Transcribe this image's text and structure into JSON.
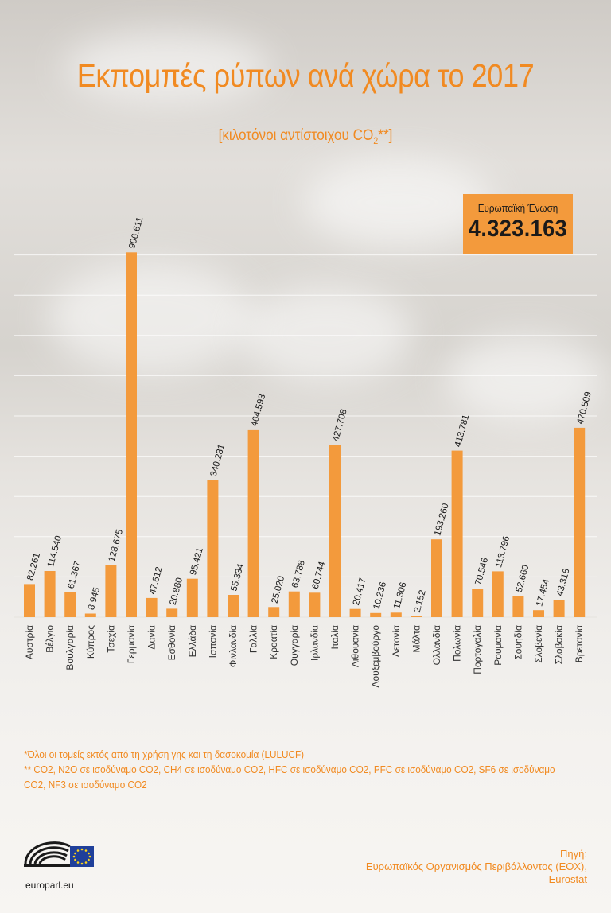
{
  "header": {
    "title": "Εκπομπές ρύπων ανά χώρα το 2017",
    "subtitle_main": "[κιλοτόνοι αντίστοιχου CO",
    "subtitle_sub": "2",
    "subtitle_end": "**]"
  },
  "eu_total": {
    "label": "Ευρωπαϊκή Ένωση",
    "value": "4.323.163"
  },
  "chart_data": {
    "type": "bar",
    "categories": [
      "Αυστρία",
      "Βέλγιο",
      "Βουλγαρία",
      "Κύπρος",
      "Τσεχία",
      "Γερμανία",
      "Δανία",
      "Εσθονία",
      "Ελλάδα",
      "Ισπανία",
      "Φινλανδία",
      "Γαλλία",
      "Κροατία",
      "Ουγγαρία",
      "Ιρλανδία",
      "Ιταλία",
      "Λιθουανία",
      "Λουξεμβούργο",
      "Λετονία",
      "Μάλτα",
      "Ολλανδία",
      "Πολωνία",
      "Πορτογαλία",
      "Ρουμανία",
      "Σουηδία",
      "Σλοβενία",
      "Σλοβακία",
      "Βρετανία"
    ],
    "values": [
      82261,
      114540,
      61367,
      8945,
      128675,
      906611,
      47612,
      20880,
      95421,
      340231,
      55334,
      464593,
      25020,
      63788,
      60744,
      427708,
      20417,
      10236,
      11306,
      2152,
      193260,
      413781,
      70546,
      113796,
      52660,
      17454,
      43316,
      470509
    ],
    "labels": [
      "82.261",
      "114.540",
      "61.367",
      "8.945",
      "128.675",
      "906.611",
      "47.612",
      "20.880",
      "95.421",
      "340.231",
      "55.334",
      "464.593",
      "25.020",
      "63.788",
      "60.744",
      "427.708",
      "20.417",
      "10.236",
      "11.306",
      "2.152",
      "193.260",
      "413.781",
      "70.546",
      "113.796",
      "52.660",
      "17.454",
      "43.316",
      "470.509"
    ],
    "ylim": [
      0,
      1000000
    ],
    "grid": true,
    "bar_color": "#f39a3c"
  },
  "notes": {
    "line1": "*Όλοι οι τομείς εκτός από τη χρήση γης και τη δασοκομία (LULUCF)",
    "line2": "** CO2, N2O σε ισοδύναμο CO2, CH4 σε ισοδύναμο CO2, HFC σε ισοδύναμο CO2, PFC σε ισοδύναμο CO2, SF6 σε ισοδύναμο CO2, NF3 σε ισοδύναμο CO2"
  },
  "source": {
    "line1": "Πηγή:",
    "line2": "Ευρωπαϊκός Οργανισμός Περιβάλλοντος (ΕΟΧ),",
    "line3": "Eurostat"
  },
  "footer": {
    "logo_text": "europarl.eu",
    "logo_icon": "european-parliament-logo-icon"
  }
}
